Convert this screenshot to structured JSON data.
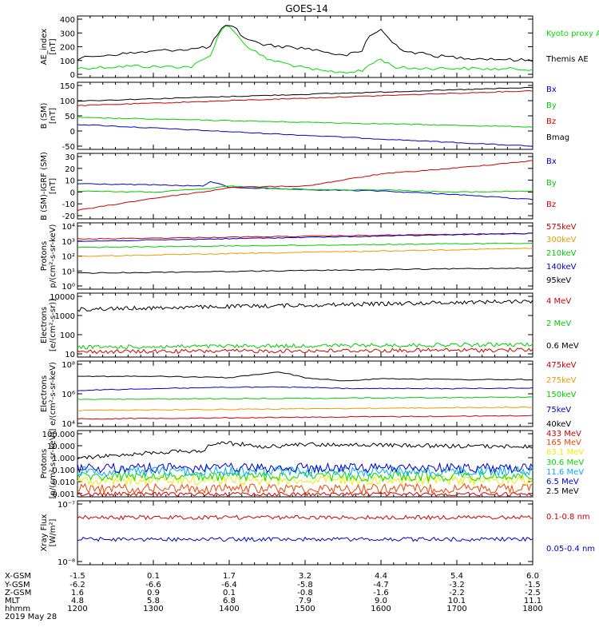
{
  "title": "GOES-14",
  "date": "2019 May 28",
  "chart_data": [
    {
      "type": "line",
      "ylabel": [
        "AE_index",
        "[nT]"
      ],
      "yticks": [
        "400",
        "300",
        "200",
        "100",
        "0"
      ],
      "ylim": [
        0,
        400
      ],
      "series": [
        {
          "name": "Kyoto proxy AE",
          "color": "#00dd00",
          "x": [
            1200,
            1215,
            1230,
            1245,
            1300,
            1315,
            1330,
            1345,
            1350,
            1355,
            1400,
            1405,
            1410,
            1420,
            1430,
            1445,
            1500,
            1515,
            1530,
            1545,
            1550,
            1600,
            1610,
            1620,
            1645,
            1700,
            1730,
            1800
          ],
          "y": [
            60,
            65,
            70,
            75,
            70,
            70,
            70,
            140,
            250,
            330,
            330,
            300,
            230,
            170,
            120,
            90,
            60,
            40,
            35,
            40,
            80,
            120,
            70,
            60,
            60,
            60,
            55,
            55
          ]
        },
        {
          "name": "Themis AE",
          "color": "#000000",
          "x": [
            1200,
            1215,
            1230,
            1245,
            1300,
            1315,
            1330,
            1345,
            1350,
            1355,
            1400,
            1405,
            1410,
            1420,
            1430,
            1445,
            1500,
            1515,
            1530,
            1545,
            1550,
            1600,
            1610,
            1620,
            1645,
            1700,
            1730,
            1800
          ],
          "y": [
            120,
            140,
            150,
            160,
            170,
            180,
            185,
            200,
            270,
            330,
            330,
            320,
            270,
            230,
            210,
            200,
            190,
            170,
            140,
            170,
            270,
            310,
            220,
            170,
            140,
            130,
            120,
            110
          ]
        }
      ]
    },
    {
      "type": "line",
      "ylabel": [
        "B (SM)",
        "[nT]"
      ],
      "yticks": [
        "150",
        "100",
        "50",
        "0",
        "-50"
      ],
      "ylim": [
        -60,
        155
      ],
      "series": [
        {
          "name": "Bx",
          "color": "#0000cc",
          "x": [
            1200,
            1800
          ],
          "y": [
            20,
            -50
          ]
        },
        {
          "name": "By",
          "color": "#00cc00",
          "x": [
            1200,
            1800
          ],
          "y": [
            42,
            12
          ]
        },
        {
          "name": "Bz",
          "color": "#cc0000",
          "x": [
            1200,
            1800
          ],
          "y": [
            80,
            128
          ]
        },
        {
          "name": "Bmag",
          "color": "#000000",
          "x": [
            1200,
            1800
          ],
          "y": [
            95,
            138
          ]
        }
      ]
    },
    {
      "type": "line",
      "ylabel": [
        "B (SM)-IGRF (SM)",
        "[nT]"
      ],
      "yticks": [
        "30",
        "20",
        "10",
        "0",
        "-10",
        "-20"
      ],
      "ylim": [
        -22,
        32
      ],
      "series": [
        {
          "name": "Bx",
          "color": "#0000cc",
          "x": [
            1200,
            1300,
            1340,
            1345,
            1400,
            1500,
            1600,
            1700,
            1800
          ],
          "y": [
            7,
            6,
            5,
            9,
            4,
            2,
            1,
            -2,
            -6
          ]
        },
        {
          "name": "By",
          "color": "#00cc00",
          "x": [
            1200,
            1300,
            1345,
            1400,
            1500,
            1600,
            1700,
            1800
          ],
          "y": [
            1,
            0,
            3,
            5,
            2,
            2,
            0,
            1
          ]
        },
        {
          "name": "Bz",
          "color": "#cc0000",
          "x": [
            1200,
            1300,
            1345,
            1400,
            1500,
            1600,
            1700,
            1800
          ],
          "y": [
            -15,
            -5,
            1,
            4,
            5,
            15,
            20,
            26
          ]
        }
      ]
    },
    {
      "type": "line",
      "ylabel": [
        "Protons",
        "p/(cm²-s-sr-keV)"
      ],
      "yticks": [
        "10⁴",
        "10³",
        "10²",
        "10¹",
        "10⁰"
      ],
      "log": true,
      "ylim": [
        0.5,
        50000
      ],
      "series": [
        {
          "name": "575keV",
          "color": "#cc0000",
          "x": [
            1200,
            1800
          ],
          "y": [
            3000,
            8000
          ]
        },
        {
          "name": "300keV",
          "color": "#ee9900",
          "x": [
            1200,
            1800
          ],
          "y": [
            150,
            600
          ]
        },
        {
          "name": "210keV",
          "color": "#00cc00",
          "x": [
            1200,
            1800
          ],
          "y": [
            700,
            1500
          ]
        },
        {
          "name": "140keV",
          "color": "#0000cc",
          "x": [
            1200,
            1800
          ],
          "y": [
            2000,
            8000
          ]
        },
        {
          "name": "95keV",
          "color": "#000000",
          "x": [
            1200,
            1800
          ],
          "y": [
            8,
            20
          ]
        }
      ]
    },
    {
      "type": "line",
      "ylabel": [
        "Electrons",
        "[e/(cm²-s-sr)]"
      ],
      "yticks": [
        "10000",
        "1000",
        "100",
        "10"
      ],
      "log": true,
      "ylim": [
        10,
        12000
      ],
      "series": [
        {
          "name": "4 MeV",
          "color": "#cc0000",
          "x": [
            1200,
            1800
          ],
          "y": [
            18,
            22
          ]
        },
        {
          "name": "2 MeV",
          "color": "#00cc00",
          "x": [
            1200,
            1800
          ],
          "y": [
            30,
            40
          ]
        },
        {
          "name": "0.6 MeV",
          "color": "#000000",
          "x": [
            1200,
            1800
          ],
          "y": [
            2000,
            5000
          ]
        }
      ]
    },
    {
      "type": "line",
      "ylabel": [
        "Electrons",
        "e/(cm²-s-sr-keV)"
      ],
      "yticks": [
        "10⁸",
        "10⁶",
        "10⁴"
      ],
      "log": true,
      "ylim": [
        1000,
        1000000000
      ],
      "series": [
        {
          "name": "475keV",
          "color": "#cc0000",
          "x": [
            1200,
            1800
          ],
          "y": [
            5000,
            10000
          ]
        },
        {
          "name": "275keV",
          "color": "#ee9900",
          "x": [
            1200,
            1800
          ],
          "y": [
            30000,
            60000
          ]
        },
        {
          "name": "150keV",
          "color": "#00cc00",
          "x": [
            1200,
            1800
          ],
          "y": [
            300000,
            500000
          ]
        },
        {
          "name": "75keV",
          "color": "#0000cc",
          "x": [
            1200,
            1300,
            1400,
            1500,
            1530,
            1600,
            1700,
            1800
          ],
          "y": [
            2000000,
            3000000,
            4000000,
            4000000,
            3000000,
            3000000,
            3000000,
            3500000
          ]
        },
        {
          "name": "40keV",
          "color": "#000000",
          "x": [
            1200,
            1300,
            1400,
            1440,
            1500,
            1530,
            1600,
            1700,
            1800
          ],
          "y": [
            40000000,
            40000000,
            30000000,
            100000000,
            30000000,
            15000000,
            25000000,
            20000000,
            20000000
          ]
        }
      ]
    },
    {
      "type": "line",
      "ylabel": [
        "Protons",
        "[p/(cm²-s-sr-keV)]"
      ],
      "yticks": [
        "100.000",
        "10.000",
        "1.000",
        "0.100",
        "0.010",
        "0.001"
      ],
      "log": true,
      "ylim": [
        0.0006,
        200
      ],
      "series": [
        {
          "name": "433 MeV",
          "color": "#cc0000",
          "x": [
            1200,
            1800
          ],
          "y": [
            0.001,
            0.001
          ]
        },
        {
          "name": "165 MeV",
          "color": "#ee4400",
          "x": [
            1200,
            1800
          ],
          "y": [
            0.003,
            0.003
          ]
        },
        {
          "name": "63.1 MeV",
          "color": "#eeee00",
          "x": [
            1200,
            1800
          ],
          "y": [
            0.015,
            0.015
          ]
        },
        {
          "name": "30.6 MeV",
          "color": "#00dd00",
          "x": [
            1200,
            1800
          ],
          "y": [
            0.03,
            0.03
          ]
        },
        {
          "name": "11.6 MeV",
          "color": "#00aaff",
          "x": [
            1200,
            1800
          ],
          "y": [
            0.08,
            0.08
          ]
        },
        {
          "name": "6.5 MeV",
          "color": "#0000cc",
          "x": [
            1200,
            1800
          ],
          "y": [
            0.15,
            0.15
          ]
        },
        {
          "name": "2.5 MeV",
          "color": "#000000",
          "x": [
            1200,
            1300,
            1340,
            1345,
            1400,
            1430,
            1500,
            1600,
            1700,
            1800
          ],
          "y": [
            1,
            3,
            4,
            15,
            18,
            9,
            14,
            12,
            10,
            9
          ]
        }
      ]
    },
    {
      "type": "line",
      "ylabel": [
        "Xray Flux",
        "[W/m²]"
      ],
      "yticks": [
        "10⁻⁷",
        "10⁻⁸"
      ],
      "log": true,
      "ylim": [
        1e-08,
        1e-07
      ],
      "series": [
        {
          "name": "0.1-0.8 nm",
          "color": "#cc0000",
          "x": [
            1200,
            1800
          ],
          "y": [
            5.5e-08,
            5.5e-08
          ]
        },
        {
          "name": "0.05-0.4 nm",
          "color": "#0000cc",
          "x": [
            1200,
            1800
          ],
          "y": [
            2.5e-08,
            2.5e-08
          ]
        }
      ]
    }
  ],
  "xaxis": {
    "row_labels": [
      "X-GSM",
      "Y-GSM",
      "Z-GSM",
      "MLT",
      "hhmm"
    ],
    "columns": [
      [
        "-1.5",
        "-6.2",
        "1.6",
        "4.8",
        "1200"
      ],
      [
        "0.1",
        "-6.6",
        "0.9",
        "5.8",
        "1300"
      ],
      [
        "1.7",
        "-6.4",
        "0.1",
        "6.8",
        "1400"
      ],
      [
        "3.2",
        "-5.8",
        "-0.8",
        "7.9",
        "1500"
      ],
      [
        "4.4",
        "-4.7",
        "-1.6",
        "9.0",
        "1600"
      ],
      [
        "5.4",
        "-3.2",
        "-2.2",
        "10.1",
        "1700"
      ],
      [
        "6.0",
        "-1.5",
        "-2.5",
        "11.1",
        "1800"
      ]
    ]
  }
}
